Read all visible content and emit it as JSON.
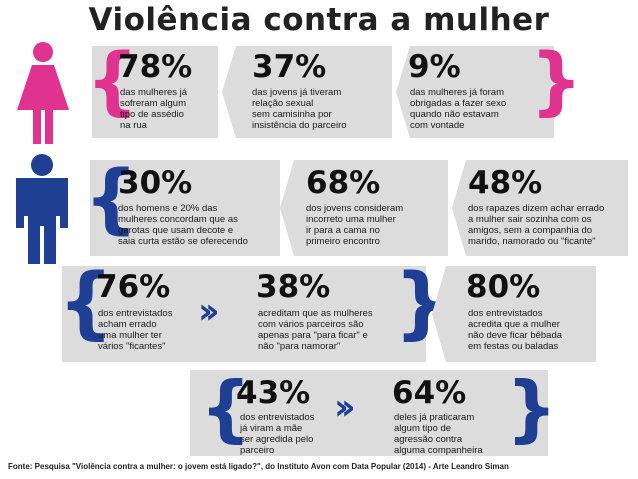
{
  "title": "Violência contra a mulher",
  "colors": {
    "pink": "#e0338f",
    "blue": "#1e3f93",
    "box": "#dcdcdc"
  },
  "icons": {
    "woman": "woman-figure-icon",
    "man": "man-figure-icon"
  },
  "stats": [
    {
      "pct": "78%",
      "desc": [
        "das mulheres já",
        "sofreram algum",
        "tipo de assédio",
        "na rua"
      ]
    },
    {
      "pct": "37%",
      "desc": [
        "das jovens já tiveram",
        "relação sexual",
        "sem camisinha por",
        "insistência do parceiro"
      ]
    },
    {
      "pct": "9%",
      "desc": [
        "das mulheres já foram",
        "obrigadas a fazer sexo",
        "quando não estavam",
        "com vontade"
      ]
    },
    {
      "pct": "30%",
      "desc": [
        "dos homens e 20% das",
        "mulheres concordam que as",
        "garotas que usam decote e",
        "saia curta estão se oferecendo"
      ]
    },
    {
      "pct": "68%",
      "desc": [
        "dos jovens consideram",
        "incorreto uma mulher",
        "ir para a cama no",
        "primeiro encontro"
      ]
    },
    {
      "pct": "48%",
      "desc": [
        "dos rapazes dizem achar errado",
        "a mulher sair sozinha com os",
        "amigos, sem a companhia do",
        "marido, namorado ou \"ficante\""
      ]
    },
    {
      "pct": "76%",
      "desc": [
        "dos entrevistados",
        "acham errado",
        "uma mulher ter",
        "vários \"ficantes\""
      ]
    },
    {
      "pct": "38%",
      "desc": [
        "acreditam que as mulheres",
        "com vários parceiros são",
        "apenas para \"para ficar\" e",
        "não \"para namorar\""
      ]
    },
    {
      "pct": "80%",
      "desc": [
        "dos entrevistados",
        "acredita que a mulher",
        "não deve ficar bêbada",
        "em festas ou baladas"
      ]
    },
    {
      "pct": "43%",
      "desc": [
        "dos entrevistados",
        "já viram a mãe",
        "ser agredida pelo",
        "parceiro"
      ]
    },
    {
      "pct": "64%",
      "desc": [
        "deles já praticaram",
        "algum tipo de",
        "agressão contra",
        "alguma companheira"
      ]
    }
  ],
  "source": "Fonte: Pesquisa \"Violência contra a mulher: o jovem está ligado?\", do Instituto Avon com Data Popular (2014) - Arte Leandro Siman"
}
